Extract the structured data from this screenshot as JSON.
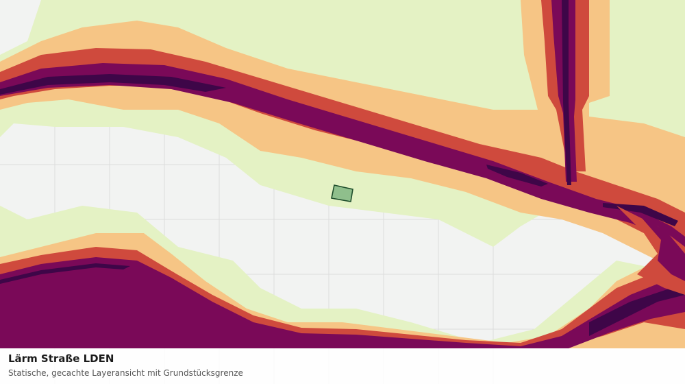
{
  "map": {
    "layer_name": "Lärm Straße LDEN",
    "noise_colors": [
      "#e4f2c4",
      "#f6c585",
      "#cf4a3d",
      "#7a0958",
      "#3e0648"
    ],
    "background_color": "#f2f3f2",
    "grid_color": "#dcdcdc",
    "parcel_color": "#8fbf8c",
    "parcel_outline_color": "#1e4d2b"
  },
  "legend": {
    "title": "Lärm Straße LDEN",
    "subtitle": "Statische, gecachte Layeransicht mit Grundstücksgrenze"
  }
}
